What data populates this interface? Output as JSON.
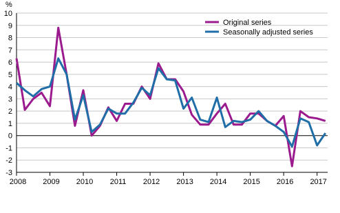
{
  "chart_data": {
    "type": "line",
    "y_label": "%",
    "categories": [
      "2008",
      null,
      null,
      null,
      "2009",
      null,
      null,
      null,
      "2010",
      null,
      null,
      null,
      "2011",
      null,
      null,
      null,
      "2012",
      null,
      null,
      null,
      "2013",
      null,
      null,
      null,
      "2014",
      null,
      null,
      null,
      "2015",
      null,
      null,
      null,
      "2016",
      null,
      null,
      null,
      "2017",
      null
    ],
    "series": [
      {
        "name": "Original series",
        "color": "#9b1b8e",
        "values": [
          6.3,
          2.1,
          3.0,
          3.5,
          2.4,
          8.8,
          5.0,
          0.8,
          3.7,
          0.0,
          0.8,
          2.3,
          1.2,
          2.6,
          2.6,
          4.0,
          3.0,
          5.9,
          4.6,
          4.6,
          3.6,
          1.7,
          0.9,
          0.9,
          1.8,
          2.6,
          0.9,
          0.9,
          1.8,
          1.8,
          1.2,
          0.8,
          1.6,
          -2.5,
          2.0,
          1.5,
          1.4,
          1.2
        ]
      },
      {
        "name": "Seasonally adjusted series",
        "color": "#1f6ea7",
        "values": [
          4.3,
          3.7,
          3.2,
          3.8,
          4.0,
          6.3,
          5.0,
          1.3,
          3.3,
          0.3,
          0.9,
          2.2,
          1.8,
          1.8,
          2.7,
          3.9,
          3.3,
          5.5,
          4.6,
          4.5,
          2.2,
          3.1,
          1.3,
          1.1,
          3.1,
          0.7,
          1.2,
          1.1,
          1.3,
          2.0,
          1.2,
          0.8,
          0.3,
          -0.9,
          1.4,
          1.1,
          -0.8,
          0.2
        ]
      }
    ],
    "ylim": [
      -3,
      10
    ],
    "yticks": [
      -3,
      -2,
      -1,
      0,
      1,
      2,
      3,
      4,
      5,
      6,
      7,
      8,
      9,
      10
    ],
    "grid": true,
    "legend": "top-right"
  }
}
